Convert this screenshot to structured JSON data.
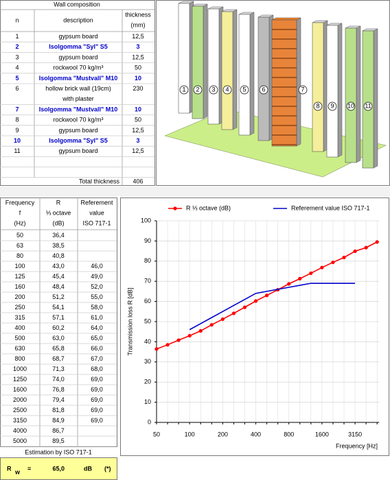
{
  "wall_composition": {
    "title": "Wall composition",
    "headers": [
      "n",
      "description",
      "thickness",
      "(mm)"
    ],
    "rows": [
      {
        "n": "1",
        "description": "gypsum board",
        "thickness": "12,5",
        "highlight": false
      },
      {
        "n": "2",
        "description": "Isolgomma \"Syl\" S5",
        "thickness": "3",
        "highlight": true
      },
      {
        "n": "3",
        "description": "gypsum board",
        "thickness": "12,5",
        "highlight": false
      },
      {
        "n": "4",
        "description": "rockwool 70 kg/m³",
        "thickness": "50",
        "highlight": false
      },
      {
        "n": "5",
        "description": "Isolgomma \"Mustvall\" M10",
        "thickness": "10",
        "highlight": true
      },
      {
        "n": "6",
        "description": "hollow brick wall (19cm)",
        "thickness": "230",
        "highlight": false
      },
      {
        "n": null,
        "description": "with plaster",
        "thickness": null,
        "highlight": false
      },
      {
        "n": "7",
        "description": "Isolgomma \"Mustvall\" M10",
        "thickness": "10",
        "highlight": true
      },
      {
        "n": "8",
        "description": "rockwool 70 kg/m³",
        "thickness": "50",
        "highlight": false
      },
      {
        "n": "9",
        "description": "gypsum board",
        "thickness": "12,5",
        "highlight": false
      },
      {
        "n": "10",
        "description": "Isolgomma \"Syl\" S5",
        "thickness": "3",
        "highlight": true
      },
      {
        "n": "11",
        "description": "gypsum board",
        "thickness": "12,5",
        "highlight": false
      },
      {
        "n": null,
        "description": null,
        "thickness": null,
        "highlight": false
      },
      {
        "n": null,
        "description": null,
        "thickness": null,
        "highlight": false
      }
    ],
    "total_label": "Total thickness",
    "total": "406"
  },
  "illustration": {
    "markers": [
      "1",
      "2",
      "3",
      "4",
      "5",
      "6",
      "7",
      "8",
      "9",
      "10",
      "11"
    ]
  },
  "frequency_table": {
    "headers": [
      [
        "Frequency",
        "f",
        "(Hz)"
      ],
      [
        "R",
        "⅓ octave",
        "(dB)"
      ],
      [
        "Referement",
        "value",
        "ISO 717-1"
      ]
    ],
    "rows": [
      [
        "50",
        "36,4",
        null
      ],
      [
        "63",
        "38,5",
        null
      ],
      [
        "80",
        "40,8",
        null
      ],
      [
        "100",
        "43,0",
        "46,0"
      ],
      [
        "125",
        "45,4",
        "49,0"
      ],
      [
        "160",
        "48,4",
        "52,0"
      ],
      [
        "200",
        "51,2",
        "55,0"
      ],
      [
        "250",
        "54,1",
        "58,0"
      ],
      [
        "315",
        "57,1",
        "61,0"
      ],
      [
        "400",
        "60,2",
        "64,0"
      ],
      [
        "500",
        "63,0",
        "65,0"
      ],
      [
        "630",
        "65,8",
        "66,0"
      ],
      [
        "800",
        "68,7",
        "67,0"
      ],
      [
        "1000",
        "71,3",
        "68,0"
      ],
      [
        "1250",
        "74,0",
        "69,0"
      ],
      [
        "1600",
        "76,8",
        "69,0"
      ],
      [
        "2000",
        "79,4",
        "69,0"
      ],
      [
        "2500",
        "81,8",
        "69,0"
      ],
      [
        "3150",
        "84,9",
        "69,0"
      ],
      [
        "4000",
        "86,7",
        null
      ],
      [
        "5000",
        "89,5",
        null
      ]
    ]
  },
  "estimation": {
    "label": "Estimation by ISO 717-1",
    "symbol": "R",
    "subscript": "w",
    "equals": "=",
    "value": "65,0",
    "unit": "dB",
    "note": "(*)"
  },
  "chart_data": {
    "type": "line",
    "xlabel": "Frequency [Hz]",
    "ylabel": "Transmission loss R [dB]",
    "categories": [
      "50",
      null,
      null,
      "100",
      null,
      null,
      "200",
      null,
      null,
      "400",
      null,
      null,
      "800",
      null,
      null,
      "1600",
      null,
      null,
      "3150",
      null,
      null
    ],
    "series": [
      {
        "name": "R ⅓ octave (dB)",
        "color": "#ff0000",
        "markers": true,
        "values": [
          36.4,
          38.5,
          40.8,
          43.0,
          45.4,
          48.4,
          51.2,
          54.1,
          57.1,
          60.2,
          63.0,
          65.8,
          68.7,
          71.3,
          74.0,
          76.8,
          79.4,
          81.8,
          84.9,
          86.7,
          89.5
        ]
      },
      {
        "name": "Referement value ISO 717-1",
        "color": "#0000cc",
        "markers": false,
        "values": [
          null,
          null,
          null,
          46,
          49,
          52,
          55,
          58,
          61,
          64,
          65,
          66,
          67,
          68,
          69,
          69,
          69,
          69,
          69,
          null,
          null
        ]
      }
    ],
    "ylim": [
      0,
      100
    ],
    "yticks": [
      0,
      10,
      20,
      30,
      40,
      50,
      60,
      70,
      80,
      90,
      100
    ],
    "grid": true
  }
}
